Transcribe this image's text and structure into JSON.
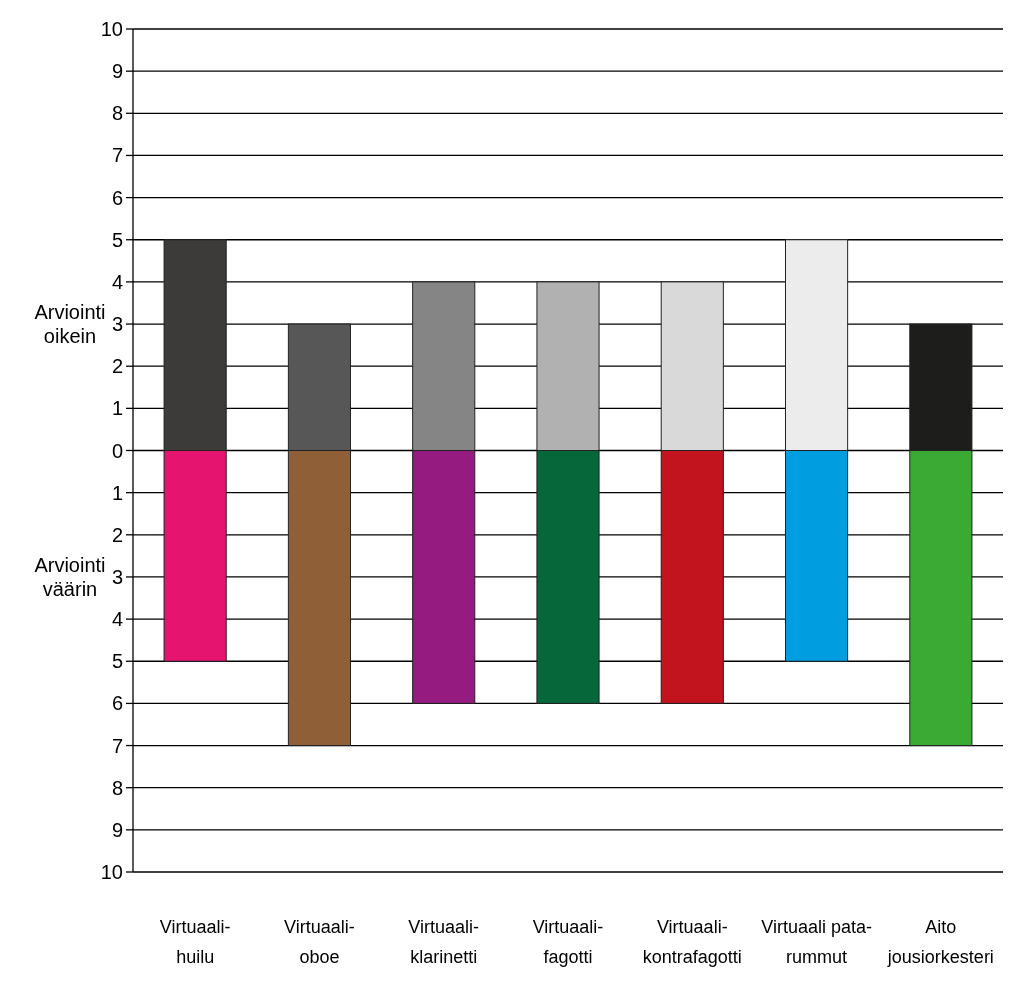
{
  "chart_data": {
    "type": "bar",
    "stacked": true,
    "grid": "y",
    "categories": [
      "Virtuaali-\nhuilu",
      "Virtuaali-\noboe",
      "Virtuaali-\nklarinetti",
      "Virtuaali-\nfagotti",
      "Virtuaali-\nkontrafagotti",
      "Virtuaali pata-\nrummut",
      "Aito\njousiorkesteri"
    ],
    "series": [
      {
        "name": "Arviointi\noikein",
        "colors": [
          "#3d3b39",
          "#575757",
          "#858585",
          "#b1b1b1",
          "#d9d9d9",
          "#ececec",
          "#1d1d1b"
        ],
        "values": [
          5,
          3,
          4,
          4,
          4,
          5,
          3
        ]
      },
      {
        "name": "Arviointi\nväärin",
        "colors": [
          "#e5156f",
          "#8f5f37",
          "#951b81",
          "#05673a",
          "#c1141f",
          "#009ee0",
          "#3aaa35"
        ],
        "values": [
          -5,
          -7,
          -6,
          -6,
          -6,
          -5,
          -7
        ]
      }
    ],
    "ylim": [
      -10,
      10
    ],
    "yticks": [
      {
        "value": -10,
        "label": "10"
      },
      {
        "value": -9,
        "label": "9"
      },
      {
        "value": -8,
        "label": "8"
      },
      {
        "value": -7,
        "label": "7"
      },
      {
        "value": -6,
        "label": "6"
      },
      {
        "value": -5,
        "label": "5"
      },
      {
        "value": -4,
        "label": "4"
      },
      {
        "value": -3,
        "label": "3"
      },
      {
        "value": -2,
        "label": "2"
      },
      {
        "value": -1,
        "label": "1"
      },
      0,
      1,
      2,
      3,
      4,
      5,
      6,
      7,
      8,
      9,
      10
    ]
  }
}
